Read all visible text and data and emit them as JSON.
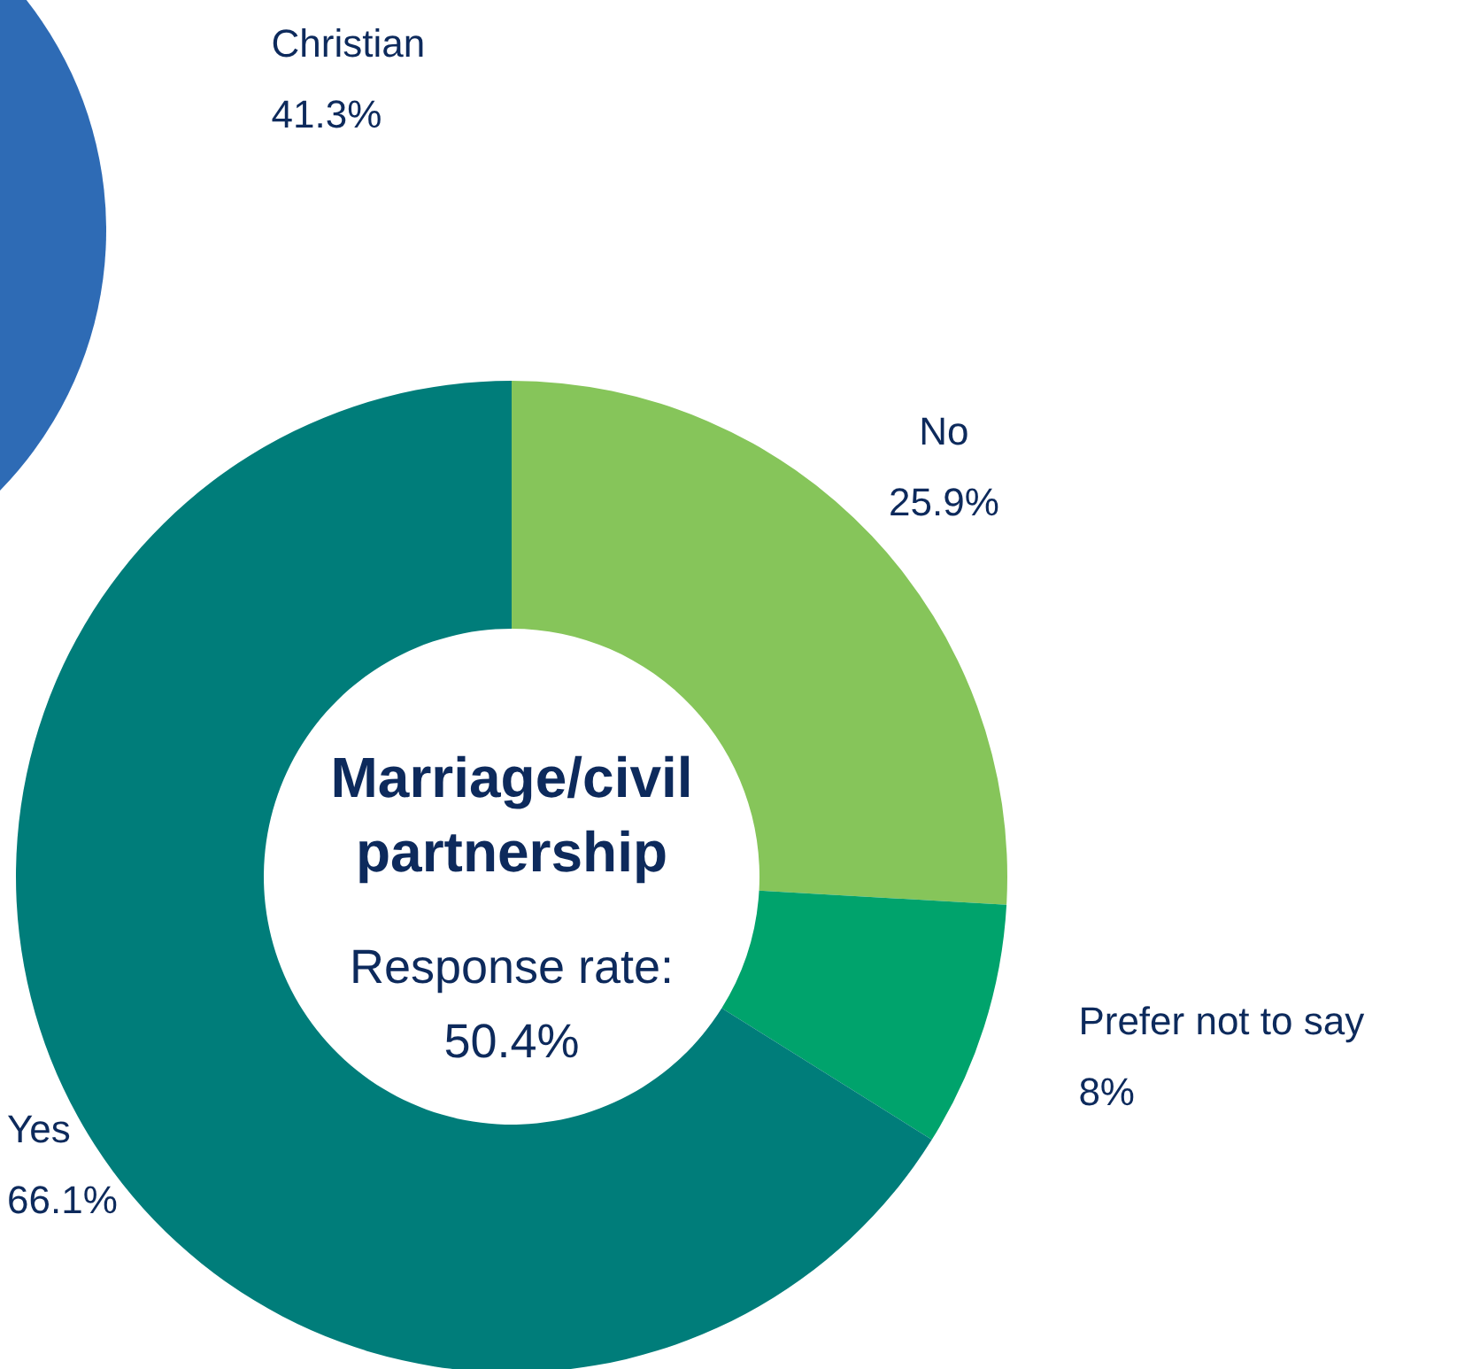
{
  "chart_data": [
    {
      "type": "pie",
      "categories": [
        "Christian"
      ],
      "values": [
        41.3
      ],
      "value_labels": [
        "41.3%"
      ],
      "colors": [
        "#2e6bb5"
      ]
    },
    {
      "type": "donut",
      "title": "Marriage/civil partnership",
      "subtitle": "Response rate: 50.4%",
      "categories": [
        "No",
        "Prefer not to say",
        "Yes"
      ],
      "values": [
        25.9,
        8,
        66.1
      ],
      "value_labels": [
        "25.9%",
        "8%",
        "66.1%"
      ],
      "colors": [
        "#86c55a",
        "#00a36c",
        "#007d7a"
      ]
    }
  ]
}
